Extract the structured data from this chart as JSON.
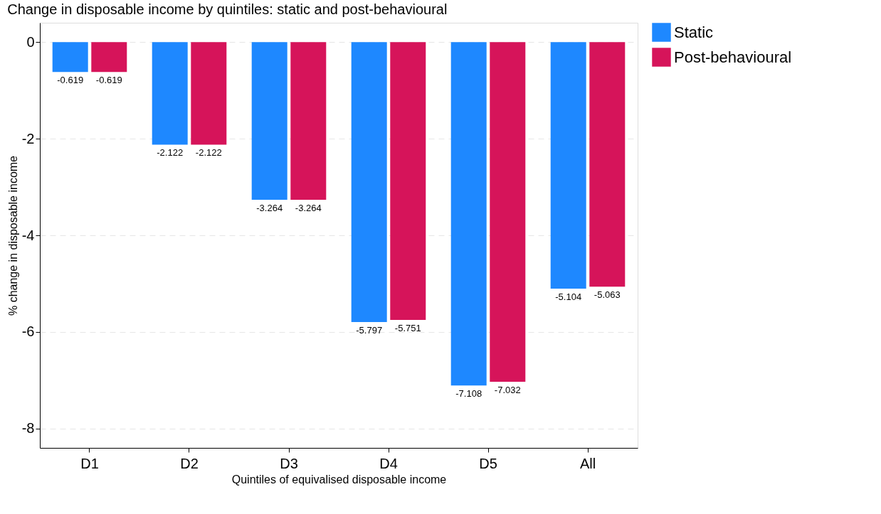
{
  "chart_data": {
    "type": "bar",
    "title": "Change in disposable income by quintiles: static and post-behavioural",
    "xlabel": "Quintiles of equivalised disposable income",
    "ylabel": "% change in disposable income",
    "categories": [
      "D1",
      "D2",
      "D3",
      "D4",
      "D5",
      "All"
    ],
    "series": [
      {
        "name": "Static",
        "color": "#1e88ff",
        "values": [
          -0.619,
          -2.122,
          -3.264,
          -5.797,
          -7.108,
          -5.104
        ]
      },
      {
        "name": "Post-behavioural",
        "color": "#d6145a",
        "values": [
          -0.619,
          -2.122,
          -3.264,
          -5.751,
          -7.032,
          -5.063
        ]
      }
    ],
    "ylim": [
      -8.4,
      0.4
    ],
    "yticks": [
      -8,
      -6,
      -4,
      -2,
      0
    ],
    "grid": "y",
    "legend": "right",
    "data_labels": true
  }
}
